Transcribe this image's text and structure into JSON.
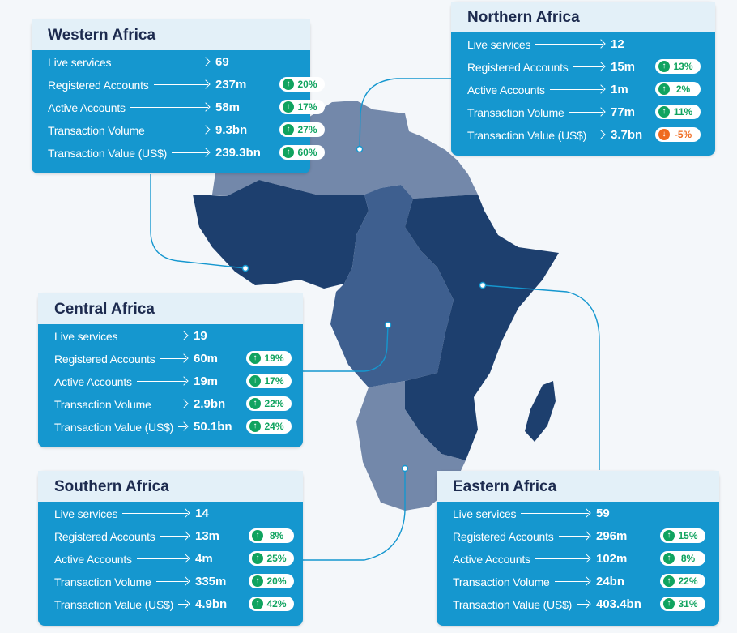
{
  "regions": [
    {
      "key": "western",
      "name": "Western Africa",
      "stats": [
        {
          "label": "Live services",
          "value": "69"
        },
        {
          "label": "Registered Accounts",
          "value": "237m",
          "change": "20%",
          "dir": "up"
        },
        {
          "label": "Active Accounts",
          "value": "58m",
          "change": "17%",
          "dir": "up"
        },
        {
          "label": "Transaction Volume",
          "value": "9.3bn",
          "change": "27%",
          "dir": "up"
        },
        {
          "label": "Transaction Value (US$)",
          "value": "239.3bn",
          "change": "60%",
          "dir": "up"
        }
      ]
    },
    {
      "key": "northern",
      "name": "Northern Africa",
      "stats": [
        {
          "label": "Live services",
          "value": "12"
        },
        {
          "label": "Registered Accounts",
          "value": "15m",
          "change": "13%",
          "dir": "up"
        },
        {
          "label": "Active Accounts",
          "value": "1m",
          "change": "2%",
          "dir": "up"
        },
        {
          "label": "Transaction Volume",
          "value": "77m",
          "change": "11%",
          "dir": "up"
        },
        {
          "label": "Transaction Value (US$)",
          "value": "3.7bn",
          "change": "-5%",
          "dir": "down"
        }
      ]
    },
    {
      "key": "central",
      "name": "Central Africa",
      "stats": [
        {
          "label": "Live services",
          "value": "19"
        },
        {
          "label": "Registered Accounts",
          "value": "60m",
          "change": "19%",
          "dir": "up"
        },
        {
          "label": "Active Accounts",
          "value": "19m",
          "change": "17%",
          "dir": "up"
        },
        {
          "label": "Transaction Volume",
          "value": "2.9bn",
          "change": "22%",
          "dir": "up"
        },
        {
          "label": "Transaction Value (US$)",
          "value": "50.1bn",
          "change": "24%",
          "dir": "up"
        }
      ]
    },
    {
      "key": "southern",
      "name": "Southern Africa",
      "stats": [
        {
          "label": "Live services",
          "value": "14"
        },
        {
          "label": "Registered Accounts",
          "value": "13m",
          "change": "8%",
          "dir": "up"
        },
        {
          "label": "Active Accounts",
          "value": "4m",
          "change": "25%",
          "dir": "up"
        },
        {
          "label": "Transaction Volume",
          "value": "335m",
          "change": "20%",
          "dir": "up"
        },
        {
          "label": "Transaction Value (US$)",
          "value": "4.9bn",
          "change": "42%",
          "dir": "up"
        }
      ]
    },
    {
      "key": "eastern",
      "name": "Eastern Africa",
      "stats": [
        {
          "label": "Live services",
          "value": "59"
        },
        {
          "label": "Registered Accounts",
          "value": "296m",
          "change": "15%",
          "dir": "up"
        },
        {
          "label": "Active Accounts",
          "value": "102m",
          "change": "8%",
          "dir": "up"
        },
        {
          "label": "Transaction Volume",
          "value": "24bn",
          "change": "22%",
          "dir": "up"
        },
        {
          "label": "Transaction Value (US$)",
          "value": "403.4bn",
          "change": "31%",
          "dir": "up"
        }
      ]
    }
  ],
  "colors": {
    "card": "#1597cf",
    "card_header": "#e3f0f8",
    "title_text": "#1d2b4f",
    "up": "#10a35f",
    "down": "#ef6a1f",
    "region_dark": "#1d3f6e",
    "region_mid": "#3e5f8f",
    "region_light": "#7388aa"
  }
}
